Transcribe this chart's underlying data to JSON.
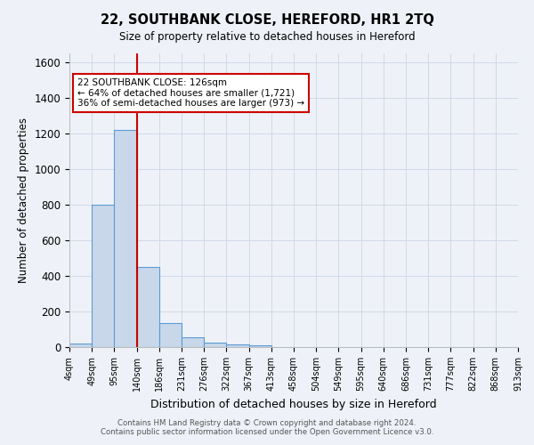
{
  "title": "22, SOUTHBANK CLOSE, HEREFORD, HR1 2TQ",
  "subtitle": "Size of property relative to detached houses in Hereford",
  "xlabel": "Distribution of detached houses by size in Hereford",
  "ylabel": "Number of detached properties",
  "bar_values": [
    22,
    800,
    1221,
    449,
    133,
    55,
    25,
    15,
    12,
    0,
    0,
    0,
    0,
    0,
    0,
    0,
    0,
    0,
    0,
    0
  ],
  "bar_labels": [
    "4sqm",
    "49sqm",
    "95sqm",
    "140sqm",
    "186sqm",
    "231sqm",
    "276sqm",
    "322sqm",
    "367sqm",
    "413sqm",
    "458sqm",
    "504sqm",
    "549sqm",
    "595sqm",
    "640sqm",
    "686sqm",
    "731sqm",
    "777sqm",
    "822sqm",
    "868sqm",
    "913sqm"
  ],
  "bar_color": "#c8d8ea",
  "bar_edge_color": "#5b9bd5",
  "vline_x": 3.0,
  "vline_color": "#cc0000",
  "ylim": [
    0,
    1650
  ],
  "yticks": [
    0,
    200,
    400,
    600,
    800,
    1000,
    1200,
    1400,
    1600
  ],
  "annotation_text": "22 SOUTHBANK CLOSE: 126sqm\n← 64% of detached houses are smaller (1,721)\n36% of semi-detached houses are larger (973) →",
  "annotation_box_color": "#ffffff",
  "annotation_box_edge_color": "#cc0000",
  "grid_color": "#d0d8e8",
  "background_color": "#eef2f8",
  "footer_line1": "Contains HM Land Registry data © Crown copyright and database right 2024.",
  "footer_line2": "Contains public sector information licensed under the Open Government Licence v3.0."
}
